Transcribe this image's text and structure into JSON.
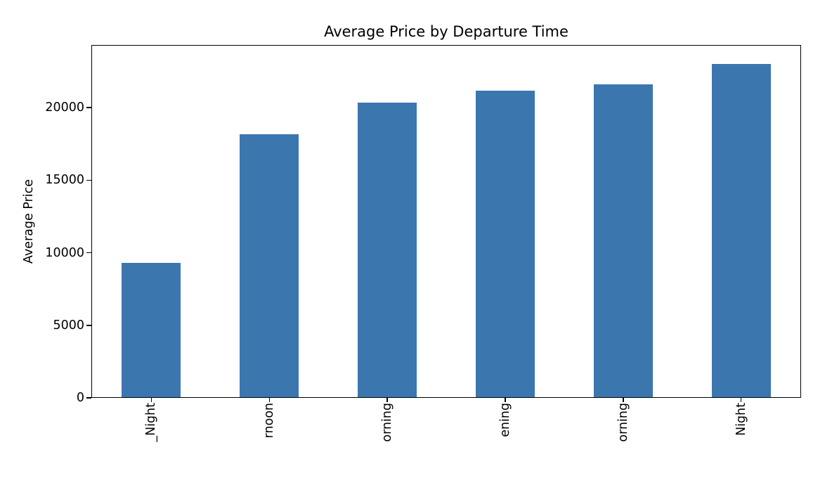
{
  "chart_data": {
    "type": "bar",
    "title": "Average Price by Departure Time",
    "xlabel": "",
    "ylabel": "Average Price",
    "categories": [
      "_Night",
      "rnoon",
      "orning",
      "ening",
      "orning",
      "Night"
    ],
    "values": [
      9300,
      18200,
      20400,
      21250,
      21650,
      23100
    ],
    "yticks": [
      0,
      5000,
      10000,
      15000,
      20000
    ],
    "ylim": [
      0,
      24320
    ],
    "bar_color": "#3c76af",
    "axis_color": "#000000",
    "grid": false,
    "legend": false,
    "x_tick_label_rotation": 90
  }
}
